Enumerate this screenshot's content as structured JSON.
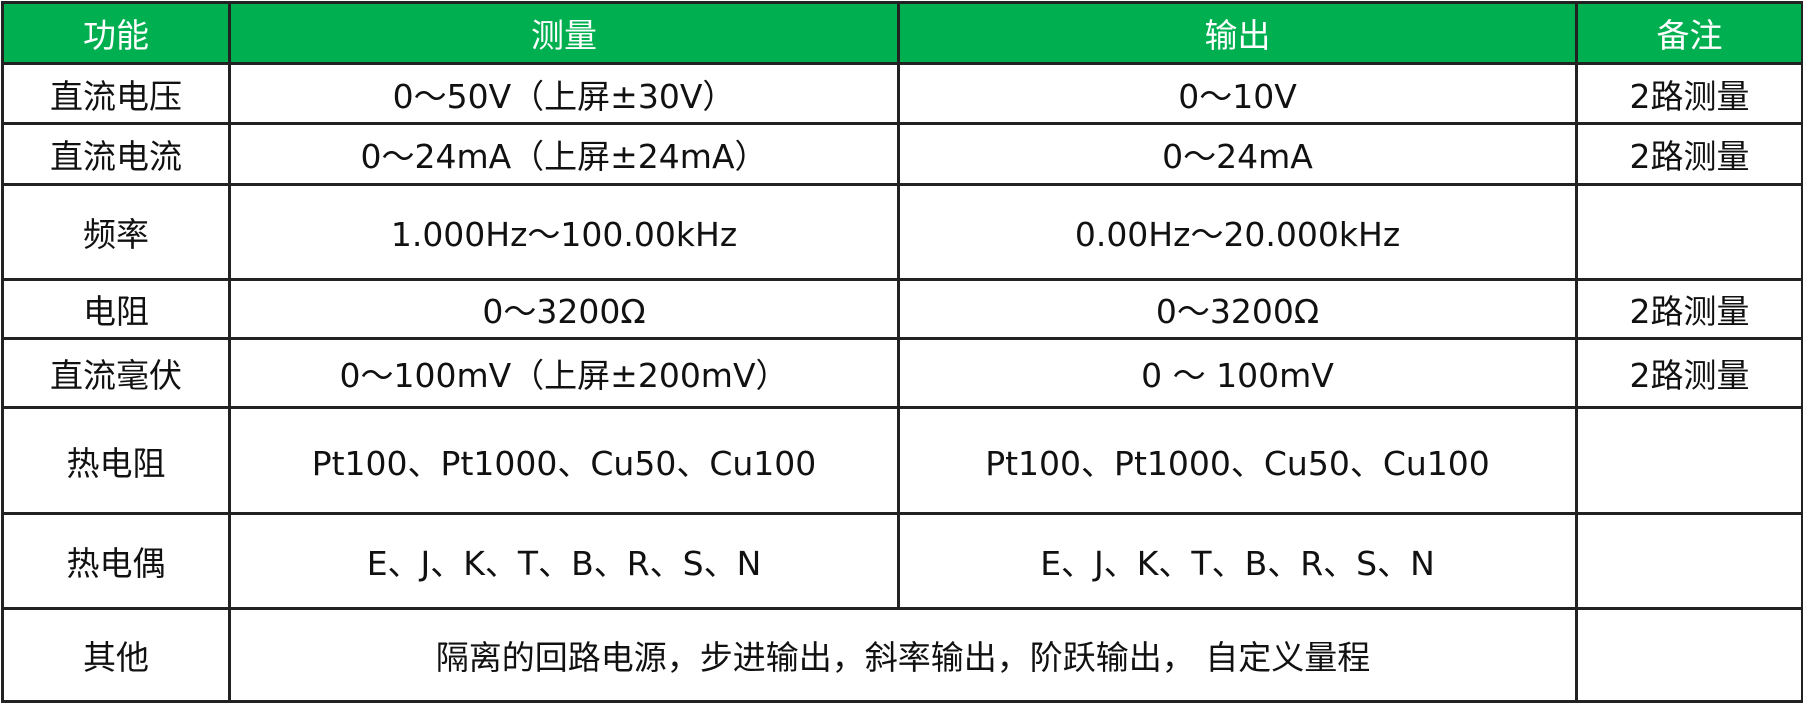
{
  "header_color": "#00b050",
  "headers": [
    "功能",
    "测量",
    "输出",
    "备注"
  ],
  "rows": [
    {
      "function": "直流电压",
      "measure": "0～50V（上屏±30V）",
      "output": "0～10V",
      "note": "2路测量"
    },
    {
      "function": "直流电流",
      "measure": "0～24mA（上屏±24mA）",
      "output": "0～24mA",
      "note": "2路测量"
    },
    {
      "function": "频率",
      "measure": "1.000Hz～100.00kHz",
      "output": "0.00Hz～20.000kHz",
      "note": ""
    },
    {
      "function": "电阻",
      "measure": "0～3200Ω",
      "output": "0～3200Ω",
      "note": "2路测量"
    },
    {
      "function": "直流毫伏",
      "measure": "0～100mV（上屏±200mV）",
      "output": "0 ～ 100mV",
      "note": "2路测量"
    },
    {
      "function": "热电阻",
      "measure": "Pt100、Pt1000、Cu50、Cu100",
      "output": "Pt100、Pt1000、Cu50、Cu100",
      "note": ""
    },
    {
      "function": "热电偶",
      "measure": "E、J、K、T、B、R、S、N",
      "output": "E、J、K、T、B、R、S、N",
      "note": ""
    }
  ],
  "other": {
    "function": "其他",
    "merged": "隔离的回路电源，步进输出，斜率输出，阶跃输出， 自定义量程",
    "note": ""
  }
}
